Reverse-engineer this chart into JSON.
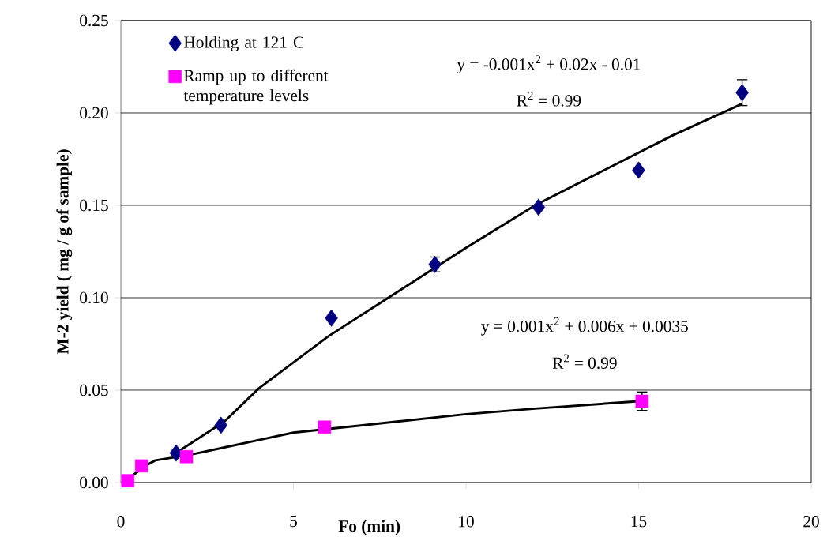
{
  "chart_data": {
    "type": "scatter",
    "xlabel": "Fo (min)",
    "ylabel": "M-2 yield ( mg / g of sample)",
    "xlim": [
      0,
      20
    ],
    "xticks": [
      0,
      5,
      10,
      15,
      20
    ],
    "ylim": [
      0,
      0.25
    ],
    "yticks": [
      {
        "value": 0,
        "label": "0.00"
      },
      {
        "value": 0.05,
        "label": "0.05"
      },
      {
        "value": 0.1,
        "label": "0.10"
      },
      {
        "value": 0.15,
        "label": "0.15"
      },
      {
        "value": 0.2,
        "label": "0.20"
      },
      {
        "value": 0.25,
        "label": "0.25"
      }
    ],
    "grid": "y",
    "legend": "top left",
    "series": [
      {
        "name": "Holding at 121 C",
        "marker": "diamond",
        "color": "#000080",
        "x": [
          1.6,
          2.9,
          6.1,
          9.1,
          12.1,
          15.0,
          18.0
        ],
        "values": [
          0.016,
          0.031,
          0.089,
          0.118,
          0.149,
          0.169,
          0.211
        ],
        "errors": [
          null,
          null,
          null,
          0.004,
          null,
          null,
          0.007
        ]
      },
      {
        "name": "Ramp up to different temperature levels",
        "marker": "square",
        "color": "#ff00ff",
        "x": [
          0.2,
          0.6,
          1.9,
          5.9,
          15.1
        ],
        "values": [
          0.001,
          0.009,
          0.014,
          0.03,
          0.044
        ],
        "errors": [
          null,
          null,
          null,
          null,
          0.005
        ]
      },
      {
        "type": "line",
        "marker": "none",
        "color": "#000000",
        "x": [
          1.6,
          3,
          4,
          6,
          8,
          10,
          12,
          14,
          16,
          18
        ],
        "values": [
          0.016,
          0.033,
          0.051,
          0.079,
          0.103,
          0.127,
          0.15,
          0.169,
          0.188,
          0.205
        ]
      },
      {
        "type": "line",
        "marker": "none",
        "color": "#000000",
        "x": [
          0.2,
          0.8,
          1,
          2,
          3,
          4,
          5,
          7,
          8,
          10,
          12,
          15
        ],
        "values": [
          0.002,
          0.01,
          0.012,
          0.015,
          0.019,
          0.023,
          0.027,
          0.031,
          0.033,
          0.037,
          0.04,
          0.044
        ]
      }
    ],
    "annotations": [
      "y = -0.001x$^{2}$ + 0.02x - 0.01",
      "R$^{2}$ = 0.99",
      "y = 0.001x$^{2}$ + 0.006x + 0.0035",
      "R$^{2}$ = 0.99"
    ]
  }
}
